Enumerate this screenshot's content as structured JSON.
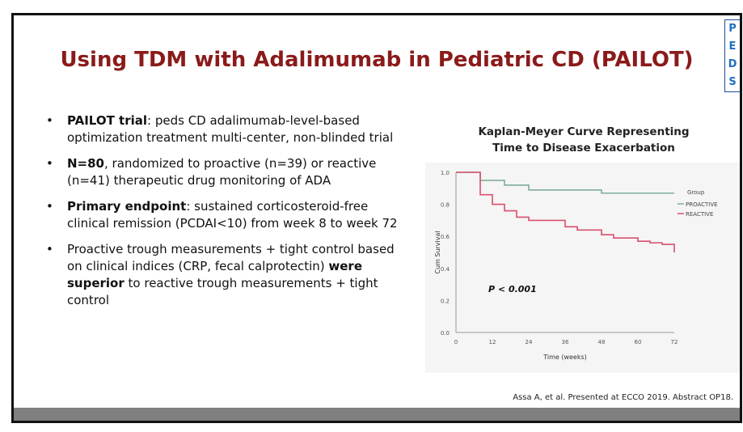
{
  "slide": {
    "title": "Using TDM with Adalimumab in Pediatric CD (PAILOT)",
    "badge_letters": [
      "P",
      "E",
      "D",
      "S"
    ],
    "bullets": [
      {
        "bold": "PAILOT trial",
        "text": ": peds CD adalimumab-level-based optimization treatment multi-center, non-blinded trial"
      },
      {
        "bold": "N=80",
        "text": ", randomized to proactive (n=39) or reactive (n=41) therapeutic drug monitoring of ADA"
      },
      {
        "bold": "Primary endpoint",
        "text": ": sustained corticosteroid-free clinical remission (PCDAI<10) from week 8 to week 72"
      },
      {
        "pre": "Proactive trough measurements + tight control based on clinical indices (CRP, fecal calprotectin) ",
        "bold": "were superior",
        "text": " to reactive trough measurements + tight control"
      }
    ],
    "citation": "Assa A, et al. Presented at ECCO 2019. Abstract OP18."
  },
  "chart_title_line1": "Kaplan-Meyer Curve Representing",
  "chart_title_line2": "Time to Disease Exacerbation",
  "colors": {
    "title": "#8b1a1a",
    "proactive": "#7fae9a",
    "reactive": "#d9506c",
    "badge": "#1f6fbf"
  },
  "chart_data": {
    "type": "line",
    "title": "Kaplan-Meyer Curve Representing Time to Disease Exacerbation",
    "xlabel": "Time (weeks)",
    "ylabel": "Cum Survival",
    "xlim": [
      0,
      72
    ],
    "ylim": [
      0,
      1.0
    ],
    "x_ticks": [
      0,
      12,
      24,
      36,
      48,
      60,
      72
    ],
    "y_ticks": [
      0.0,
      0.2,
      0.4,
      0.6,
      0.8,
      1.0
    ],
    "legend_title": "Group",
    "legend_position": "top-right",
    "annotation": "P < 0.001",
    "series": [
      {
        "name": "PROACTIVE",
        "color": "#7fae9a",
        "x": [
          0,
          8,
          16,
          24,
          36,
          48,
          60,
          72
        ],
        "y": [
          1.0,
          0.95,
          0.92,
          0.89,
          0.89,
          0.87,
          0.87,
          0.87
        ]
      },
      {
        "name": "REACTIVE",
        "color": "#d9506c",
        "x": [
          0,
          8,
          12,
          16,
          20,
          24,
          36,
          40,
          48,
          52,
          60,
          64,
          68,
          72
        ],
        "y": [
          1.0,
          0.86,
          0.8,
          0.76,
          0.72,
          0.7,
          0.66,
          0.64,
          0.61,
          0.59,
          0.57,
          0.56,
          0.55,
          0.5
        ]
      }
    ]
  }
}
